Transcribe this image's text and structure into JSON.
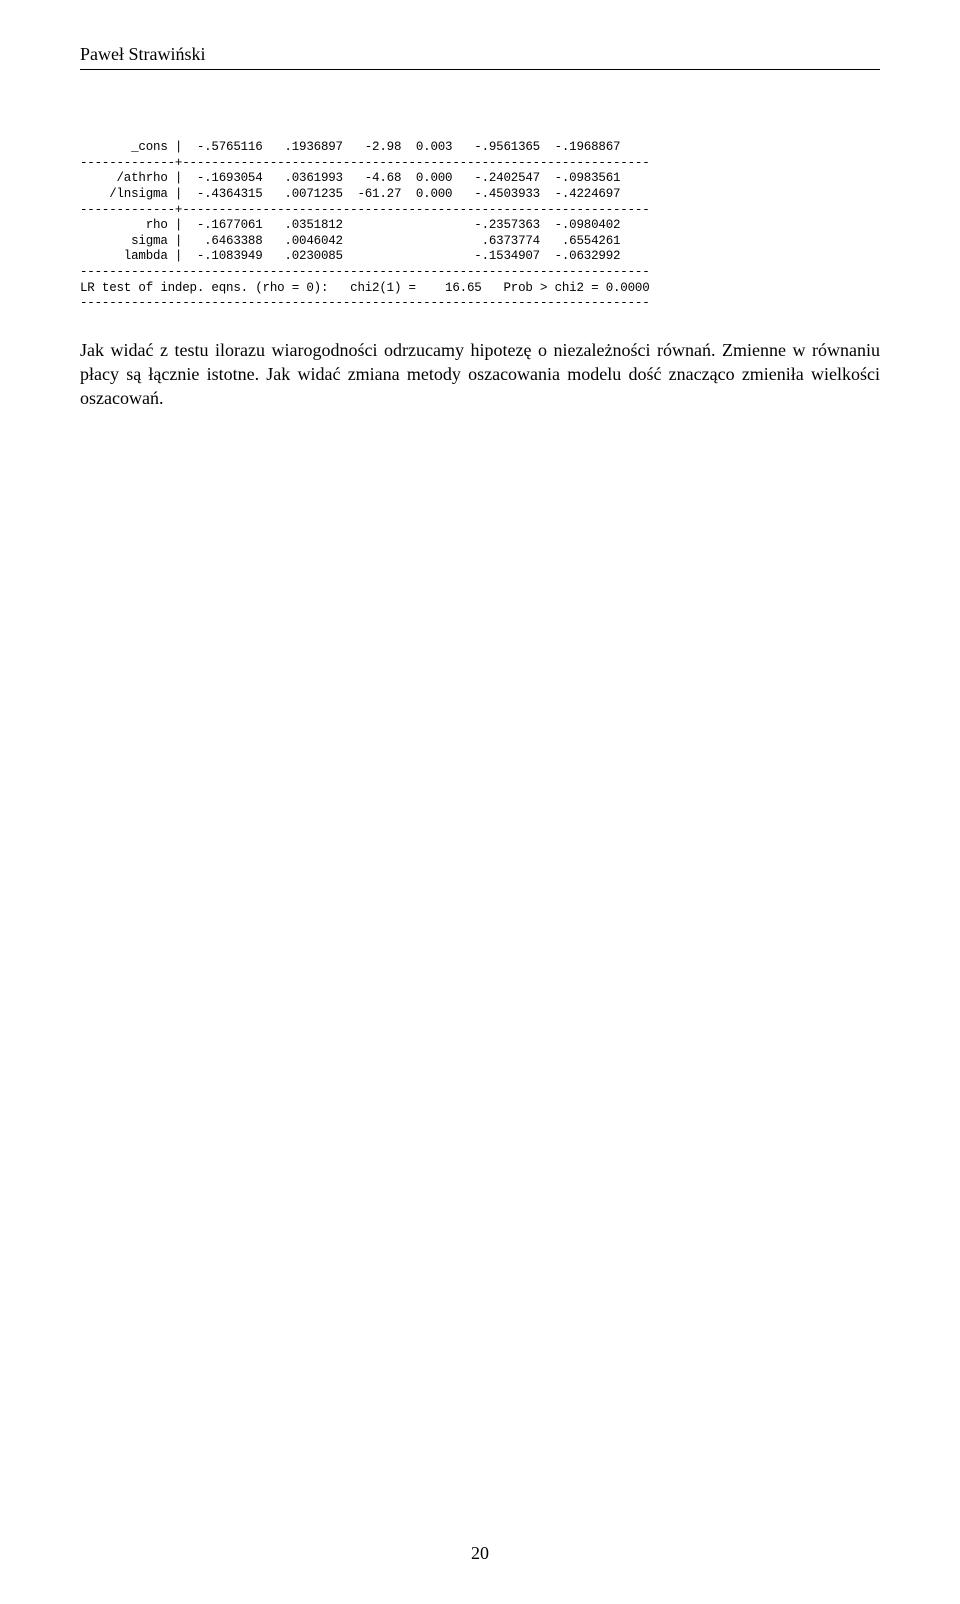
{
  "header": {
    "author": "Paweł Strawiński"
  },
  "table": {
    "rows": [
      {
        "label": "_cons",
        "coef": "-.5765116",
        "stderr": ".1936897",
        "z": "-2.98",
        "p": "0.003",
        "ci_low": "-.9561365",
        "ci_high": "-.1968867"
      }
    ],
    "sep1": "-------------+----------------------------------------------------------------",
    "rows2": [
      {
        "label": "/athrho",
        "coef": "-.1693054",
        "stderr": ".0361993",
        "z": "-4.68",
        "p": "0.000",
        "ci_low": "-.2402547",
        "ci_high": "-.0983561"
      },
      {
        "label": "/lnsigma",
        "coef": "-.4364315",
        "stderr": ".0071235",
        "z": "-61.27",
        "p": "0.000",
        "ci_low": "-.4503933",
        "ci_high": "-.4224697"
      }
    ],
    "sep2": "-------------+----------------------------------------------------------------",
    "rows3": [
      {
        "label": "rho",
        "coef": "-.1677061",
        "stderr": ".0351812",
        "z": "",
        "p": "",
        "ci_low": "-.2357363",
        "ci_high": "-.0980402"
      },
      {
        "label": "sigma",
        "coef": ".6463388",
        "stderr": ".0046042",
        "z": "",
        "p": "",
        "ci_low": ".6373774",
        "ci_high": ".6554261"
      },
      {
        "label": "lambda",
        "coef": "-.1083949",
        "stderr": ".0230085",
        "z": "",
        "p": "",
        "ci_low": "-.1534907",
        "ci_high": "-.0632992"
      }
    ],
    "sep_full": "------------------------------------------------------------------------------",
    "lr_test": "LR test of indep. eqns. (rho = 0):   chi2(1) =    16.65   Prob > chi2 = 0.0000",
    "sep_end": "------------------------------------------------------------------------------"
  },
  "paragraph": "Jak widać z testu ilorazu wiarogodności odrzucamy hipotezę o niezależności równań. Zmienne w równaniu płacy są łącznie istotne. Jak widać zmiana metody oszacowania modelu dość znacząco zmieniła wielkości oszacowań.",
  "page_number": "20"
}
